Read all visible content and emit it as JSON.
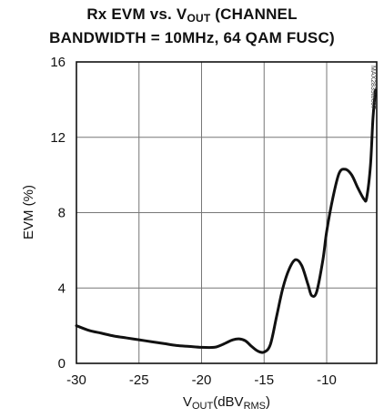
{
  "chart_data": {
    "type": "line",
    "title_line1": "Rx EVM vs. V",
    "title_line1_sub": "OUT",
    "title_line1_end": " (CHANNEL",
    "title_line2": "BANDWIDTH = 10MHz, 64 QAM FUSC)",
    "ylabel": "EVM (%)",
    "xlabel_main": "V",
    "xlabel_sub1": "OUT",
    "xlabel_mid": "(dBV",
    "xlabel_sub2": "RMS",
    "xlabel_end": ")",
    "figure_code": "MAX2839toc07",
    "xlim": [
      -30,
      -6
    ],
    "ylim": [
      0,
      16
    ],
    "x_ticks": [
      -30,
      -25,
      -20,
      -15,
      -10
    ],
    "y_ticks": [
      0,
      4,
      8,
      12,
      16
    ],
    "grid": true,
    "series": [
      {
        "color": "#111111",
        "points": [
          [
            -30,
            2.0
          ],
          [
            -29,
            1.75
          ],
          [
            -28,
            1.6
          ],
          [
            -27,
            1.45
          ],
          [
            -26,
            1.35
          ],
          [
            -25,
            1.25
          ],
          [
            -24,
            1.15
          ],
          [
            -23,
            1.05
          ],
          [
            -22,
            0.95
          ],
          [
            -21,
            0.9
          ],
          [
            -20,
            0.85
          ],
          [
            -19,
            0.85
          ],
          [
            -18.5,
            0.95
          ],
          [
            -18,
            1.1
          ],
          [
            -17.5,
            1.25
          ],
          [
            -17,
            1.3
          ],
          [
            -16.5,
            1.2
          ],
          [
            -16,
            0.9
          ],
          [
            -15.5,
            0.65
          ],
          [
            -15,
            0.6
          ],
          [
            -14.5,
            1.0
          ],
          [
            -14,
            2.5
          ],
          [
            -13.5,
            4.0
          ],
          [
            -13,
            5.0
          ],
          [
            -12.5,
            5.5
          ],
          [
            -12,
            5.2
          ],
          [
            -11.5,
            4.2
          ],
          [
            -11.2,
            3.6
          ],
          [
            -10.8,
            3.8
          ],
          [
            -10.3,
            5.5
          ],
          [
            -10,
            7.0
          ],
          [
            -9.5,
            8.8
          ],
          [
            -9,
            10.1
          ],
          [
            -8.5,
            10.3
          ],
          [
            -8,
            10.0
          ],
          [
            -7.5,
            9.3
          ],
          [
            -7,
            8.7
          ],
          [
            -6.8,
            8.8
          ],
          [
            -6.5,
            10.5
          ],
          [
            -6.3,
            13.0
          ],
          [
            -6.1,
            14.5
          ]
        ]
      }
    ]
  }
}
